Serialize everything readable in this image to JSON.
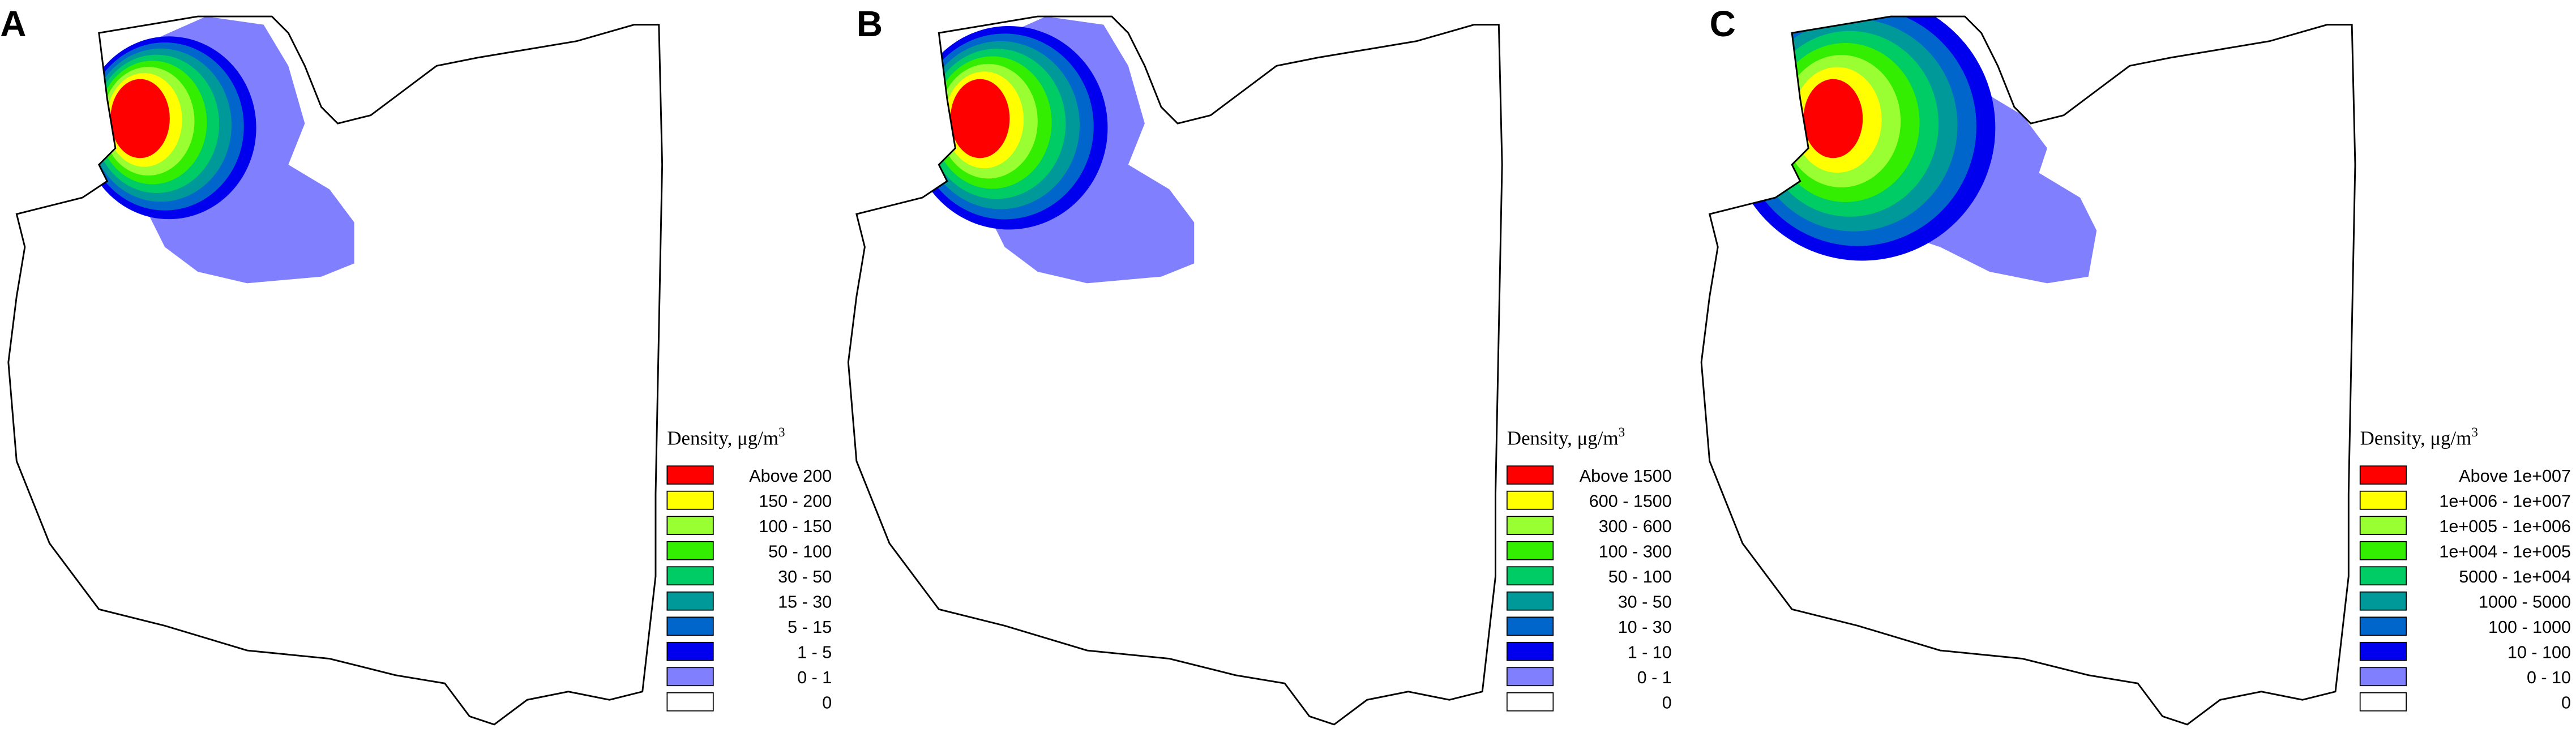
{
  "panels": [
    {
      "label": "A",
      "legend_title": "Density, μg/m",
      "legend_title_sup": "3",
      "legend": [
        {
          "color": "#ff0000",
          "label": "Above 200"
        },
        {
          "color": "#ffff00",
          "label": "150 - 200"
        },
        {
          "color": "#99ff33",
          "label": "100 - 150"
        },
        {
          "color": "#33ee00",
          "label": "50 - 100"
        },
        {
          "color": "#00cc66",
          "label": "30 - 50"
        },
        {
          "color": "#009999",
          "label": "15 - 30"
        },
        {
          "color": "#0066cc",
          "label": "5 - 15"
        },
        {
          "color": "#0000ee",
          "label": "1 - 5"
        },
        {
          "color": "#8080ff",
          "label": "0 - 1"
        },
        {
          "color": "#ffffff",
          "label": "0"
        }
      ]
    },
    {
      "label": "B",
      "legend_title": "Density, μg/m",
      "legend_title_sup": "3",
      "legend": [
        {
          "color": "#ff0000",
          "label": "Above 1500"
        },
        {
          "color": "#ffff00",
          "label": "600 - 1500"
        },
        {
          "color": "#99ff33",
          "label": "300 - 600"
        },
        {
          "color": "#33ee00",
          "label": "100 - 300"
        },
        {
          "color": "#00cc66",
          "label": "50 - 100"
        },
        {
          "color": "#009999",
          "label": "30 - 50"
        },
        {
          "color": "#0066cc",
          "label": "10 - 30"
        },
        {
          "color": "#0000ee",
          "label": "1 - 10"
        },
        {
          "color": "#8080ff",
          "label": "0 - 1"
        },
        {
          "color": "#ffffff",
          "label": "0"
        }
      ]
    },
    {
      "label": "C",
      "legend_title": "Density, μg/m",
      "legend_title_sup": "3",
      "legend": [
        {
          "color": "#ff0000",
          "label": "Above  1e+007"
        },
        {
          "color": "#ffff00",
          "label": "1e+006 - 1e+007"
        },
        {
          "color": "#99ff33",
          "label": "1e+005 - 1e+006"
        },
        {
          "color": "#33ee00",
          "label": "1e+004 - 1e+005"
        },
        {
          "color": "#00cc66",
          "label": "5000 - 1e+004"
        },
        {
          "color": "#009999",
          "label": "1000 -  5000"
        },
        {
          "color": "#0066cc",
          "label": "100 -  1000"
        },
        {
          "color": "#0000ee",
          "label": "10 -  100"
        },
        {
          "color": "#8080ff",
          "label": "0 -  10"
        },
        {
          "color": "#ffffff",
          "label": "0"
        }
      ]
    }
  ]
}
